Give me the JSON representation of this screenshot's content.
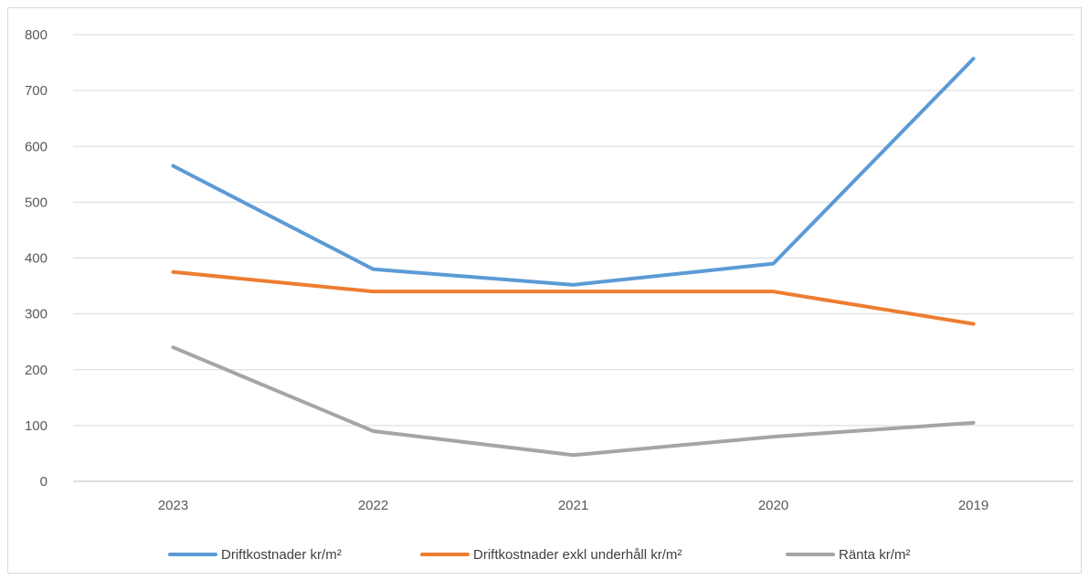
{
  "chart_data": {
    "type": "line",
    "title": "",
    "xlabel": "",
    "ylabel": "",
    "categories": [
      "2023",
      "2022",
      "2021",
      "2020",
      "2019"
    ],
    "ylim": [
      0,
      800
    ],
    "yticks": [
      0,
      100,
      200,
      300,
      400,
      500,
      600,
      700,
      800
    ],
    "grid": true,
    "legend_position": "bottom",
    "series": [
      {
        "name": "Driftkostnader kr/m²",
        "color": "#5b9bd5",
        "values": [
          565,
          380,
          352,
          390,
          757
        ]
      },
      {
        "name": "Driftkostnader exkl underhåll kr/m²",
        "color": "#ed7d31",
        "values": [
          375,
          340,
          340,
          340,
          282
        ]
      },
      {
        "name": "Ränta kr/m²",
        "color": "#a5a5a5",
        "values": [
          240,
          90,
          47,
          80,
          105
        ]
      }
    ]
  }
}
